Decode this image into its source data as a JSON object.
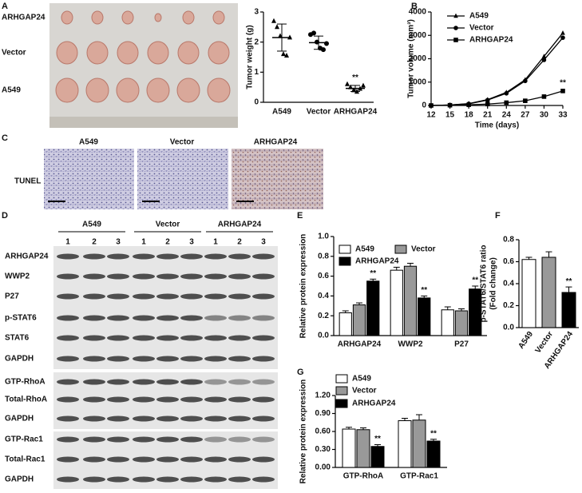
{
  "panel_letters": [
    "A",
    "B",
    "C",
    "D",
    "E",
    "F",
    "G"
  ],
  "photo_panel": {
    "row_labels": [
      "ARHGAP24",
      "Vector",
      "A549"
    ]
  },
  "tunel_panel": {
    "column_labels": [
      "A549",
      "Vector",
      "ARHGAP24"
    ],
    "row_label": "TUNEL"
  },
  "blot_panel": {
    "group_labels": [
      "A549",
      "Vector",
      "ARHGAP24"
    ],
    "lane_labels": [
      "1",
      "2",
      "3"
    ],
    "row_labels": [
      "ARHGAP24",
      "WWP2",
      "P27",
      "p-STAT6",
      "STAT6",
      "GAPDH",
      "GTP-RhoA",
      "Total-RhoA",
      "GAPDH",
      "GTP-Rac1",
      "Total-Rac1",
      "GAPDH"
    ]
  },
  "chart_data": [
    {
      "type": "scatter",
      "ylabel": "Tumor weight (g)",
      "categories": [
        "A549",
        "Vector",
        "ARHGAP24"
      ],
      "points": [
        [
          2.7,
          2.5,
          2.2,
          1.6,
          1.55,
          2.15
        ],
        [
          2.25,
          2.3,
          2.0,
          1.8,
          1.75,
          1.95
        ],
        [
          0.6,
          0.5,
          0.4,
          0.35,
          0.45,
          0.55
        ]
      ],
      "means": [
        2.15,
        1.98,
        0.46
      ],
      "sd": [
        0.45,
        0.22,
        0.1
      ],
      "markers": [
        "triangle",
        "circle",
        "triangle"
      ],
      "significance": [
        null,
        null,
        "**"
      ],
      "color": "#000000",
      "ylim": [
        0,
        3
      ],
      "yticks": [
        0,
        1,
        2,
        3
      ]
    },
    {
      "type": "line",
      "ylabel": "Tumor volume (mm³)",
      "xlabel": "Time (days)",
      "x": [
        12,
        15,
        18,
        21,
        24,
        27,
        30,
        33
      ],
      "xlim": [
        12,
        33
      ],
      "xticks": [
        12,
        15,
        18,
        21,
        24,
        27,
        30,
        33
      ],
      "ylim": [
        0,
        4000
      ],
      "yticks": [
        0,
        1000,
        2000,
        3000,
        4000
      ],
      "legend": "upper-left",
      "series": [
        {
          "name": "A549",
          "color": "#000000",
          "marker": "triangle",
          "values": [
            0,
            20,
            80,
            250,
            560,
            1100,
            2100,
            3100
          ],
          "significance": [
            null,
            null,
            null,
            null,
            null,
            null,
            null,
            null
          ]
        },
        {
          "name": "Vector",
          "color": "#000000",
          "marker": "circle",
          "values": [
            0,
            20,
            70,
            230,
            520,
            1050,
            1950,
            2900
          ],
          "significance": [
            null,
            null,
            null,
            null,
            null,
            null,
            null,
            null
          ]
        },
        {
          "name": "ARHGAP24",
          "color": "#000000",
          "marker": "square",
          "values": [
            0,
            10,
            30,
            60,
            120,
            200,
            380,
            620
          ],
          "significance": [
            null,
            null,
            null,
            null,
            null,
            null,
            null,
            "**"
          ]
        }
      ]
    },
    {
      "type": "bar",
      "ylabel": "Relative protein expression",
      "categories": [
        "ARHGAP24",
        "WWP2",
        "P27"
      ],
      "ylim": [
        0,
        1
      ],
      "yticks": [
        {
          "value": 0,
          "label": "0.0"
        },
        {
          "value": 0.2,
          "label": "0.2"
        },
        {
          "value": 0.4,
          "label": "0.4"
        },
        {
          "value": 0.6,
          "label": "0.6"
        },
        {
          "value": 0.8,
          "label": "0.8"
        },
        {
          "value": 1,
          "label": "1.0"
        }
      ],
      "series": [
        {
          "name": "A549",
          "color": "#ffffff",
          "values": [
            0.23,
            0.66,
            0.26
          ],
          "errors": [
            0.02,
            0.03,
            0.03
          ],
          "significance": [
            null,
            null,
            null
          ]
        },
        {
          "name": "Vector",
          "color": "#999999",
          "values": [
            0.31,
            0.7,
            0.25
          ],
          "errors": [
            0.02,
            0.03,
            0.02
          ],
          "significance": [
            null,
            null,
            null
          ]
        },
        {
          "name": "ARHGAP24",
          "color": "#000000",
          "values": [
            0.55,
            0.38,
            0.47
          ],
          "errors": [
            0.02,
            0.02,
            0.03
          ],
          "significance": [
            "**",
            "**",
            "**"
          ]
        }
      ]
    },
    {
      "type": "bar",
      "ylabel": [
        "p-STAT6/STAT6 ratio",
        "(Fold change)"
      ],
      "categories": [
        "A549",
        "Vector",
        "ARHGAP24"
      ],
      "values": [
        0.62,
        0.64,
        0.32
      ],
      "errors": [
        0.02,
        0.05,
        0.05
      ],
      "colors": [
        "#ffffff",
        "#999999",
        "#000000"
      ],
      "significance": [
        null,
        null,
        "**"
      ],
      "ylim": [
        0,
        0.8
      ],
      "yticks": [
        {
          "value": 0,
          "label": "0.0"
        },
        {
          "value": 0.2,
          "label": "0.2"
        },
        {
          "value": 0.4,
          "label": "0.4"
        },
        {
          "value": 0.6,
          "label": "0.6"
        },
        {
          "value": 0.8,
          "label": "0.8"
        }
      ]
    },
    {
      "type": "bar",
      "ylabel": "Relative protein expression",
      "categories": [
        "GTP-RhoA",
        "GTP-Rac1"
      ],
      "ylim": [
        0,
        1.2
      ],
      "yticks": [
        {
          "value": 0,
          "label": "0.00"
        },
        {
          "value": 0.3,
          "label": "0.30"
        },
        {
          "value": 0.6,
          "label": "0.60"
        },
        {
          "value": 0.9,
          "label": "0.90"
        },
        {
          "value": 1.2,
          "label": "1.20"
        }
      ],
      "series": [
        {
          "name": "A549",
          "color": "#ffffff",
          "values": [
            0.64,
            0.78
          ],
          "errors": [
            0.03,
            0.04
          ],
          "significance": [
            null,
            null
          ]
        },
        {
          "name": "Vector",
          "color": "#999999",
          "values": [
            0.63,
            0.79
          ],
          "errors": [
            0.03,
            0.09
          ],
          "significance": [
            null,
            null
          ]
        },
        {
          "name": "ARHGAP24",
          "color": "#000000",
          "values": [
            0.35,
            0.44
          ],
          "errors": [
            0.03,
            0.03
          ],
          "significance": [
            "**",
            "**"
          ]
        }
      ]
    }
  ]
}
